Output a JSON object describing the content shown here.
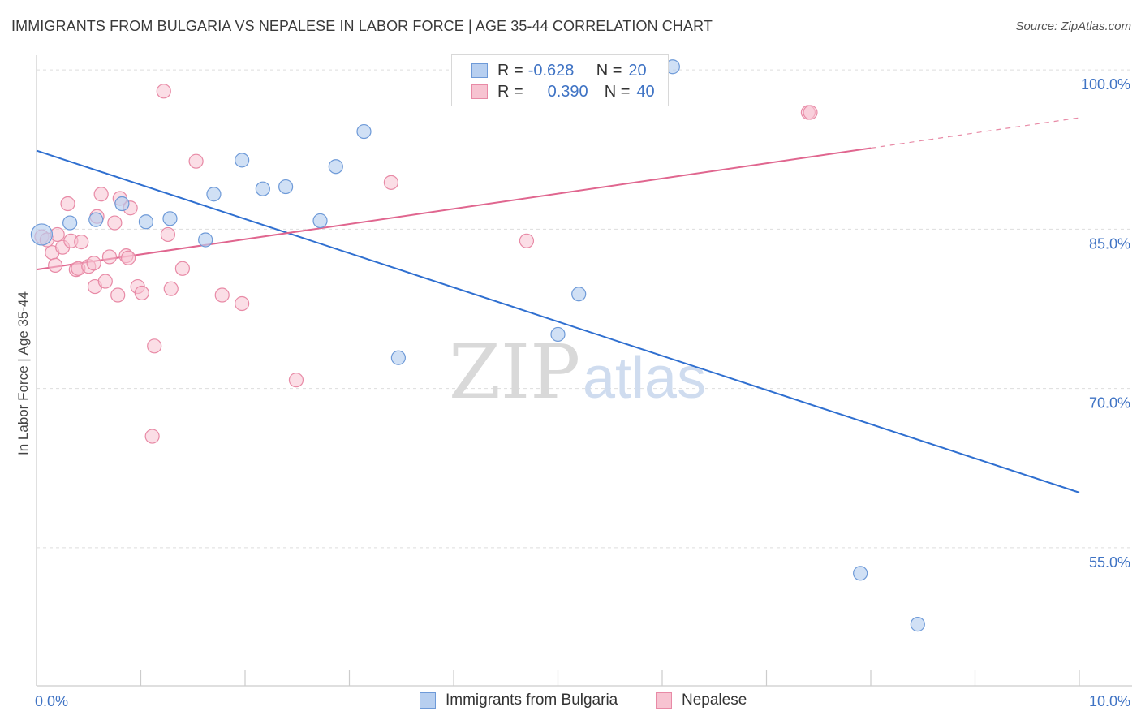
{
  "chart_data": {
    "type": "scatter",
    "title": "IMMIGRANTS FROM BULGARIA VS NEPALESE IN LABOR FORCE | AGE 35-44 CORRELATION CHART",
    "source": "Source: ZipAtlas.com",
    "xlabel": "",
    "ylabel": "In Labor Force | Age 35-44",
    "xlim": [
      0,
      10
    ],
    "ylim": [
      42,
      102
    ],
    "x_tick_labels": [
      "0.0%",
      "10.0%"
    ],
    "y_ticks": [
      {
        "value": 100,
        "label": "100.0%"
      },
      {
        "value": 85,
        "label": "85.0%"
      },
      {
        "value": 70,
        "label": "70.0%"
      },
      {
        "value": 55,
        "label": "55.0%"
      }
    ],
    "watermark": {
      "zip": "ZIP",
      "atlas": "atlas"
    },
    "legend_stats": [
      {
        "r_label": "R =",
        "r_value": "-0.628",
        "n_label": "N =",
        "n_value": "20"
      },
      {
        "r_label": "R =",
        "r_value": "0.390",
        "n_label": "N =",
        "n_value": "40"
      }
    ],
    "series": [
      {
        "name": "Immigrants from Bulgaria",
        "color": "#6e9ad8",
        "fill": "#b7cff0",
        "points": [
          [
            0.05,
            84.5
          ],
          [
            0.32,
            85.6
          ],
          [
            0.57,
            85.9
          ],
          [
            0.82,
            87.4
          ],
          [
            1.05,
            85.7
          ],
          [
            1.28,
            86.0
          ],
          [
            1.62,
            84.0
          ],
          [
            1.7,
            88.3
          ],
          [
            1.97,
            91.5
          ],
          [
            2.17,
            88.8
          ],
          [
            2.39,
            89.0
          ],
          [
            2.72,
            85.8
          ],
          [
            2.87,
            90.9
          ],
          [
            3.14,
            94.2
          ],
          [
            3.47,
            72.9
          ],
          [
            5.0,
            75.1
          ],
          [
            5.2,
            78.9
          ],
          [
            6.1,
            100.3
          ],
          [
            7.9,
            52.6
          ],
          [
            8.45,
            47.8
          ]
        ],
        "trend": {
          "x0": 0,
          "y0": 92.4,
          "x1": 10,
          "y1": 60.2
        }
      },
      {
        "name": "Nepalese",
        "color": "#e88aa6",
        "fill": "#f7c3d1",
        "points": [
          [
            0.05,
            84.3
          ],
          [
            0.1,
            84.0
          ],
          [
            0.15,
            82.8
          ],
          [
            0.2,
            84.5
          ],
          [
            0.18,
            81.6
          ],
          [
            0.25,
            83.3
          ],
          [
            0.3,
            87.4
          ],
          [
            0.33,
            83.9
          ],
          [
            0.38,
            81.2
          ],
          [
            0.4,
            81.3
          ],
          [
            0.43,
            83.8
          ],
          [
            0.5,
            81.5
          ],
          [
            0.55,
            81.8
          ],
          [
            0.56,
            79.6
          ],
          [
            0.58,
            86.2
          ],
          [
            0.62,
            88.3
          ],
          [
            0.66,
            80.1
          ],
          [
            0.7,
            82.4
          ],
          [
            0.75,
            85.6
          ],
          [
            0.78,
            78.8
          ],
          [
            0.8,
            87.9
          ],
          [
            0.86,
            82.5
          ],
          [
            0.88,
            82.3
          ],
          [
            0.97,
            79.6
          ],
          [
            1.01,
            79.0
          ],
          [
            1.11,
            65.5
          ],
          [
            1.13,
            74.0
          ],
          [
            1.22,
            98.0
          ],
          [
            1.26,
            84.5
          ],
          [
            1.29,
            79.4
          ],
          [
            1.4,
            81.3
          ],
          [
            1.53,
            91.4
          ],
          [
            1.78,
            78.8
          ],
          [
            1.97,
            78.0
          ],
          [
            2.49,
            70.8
          ],
          [
            3.4,
            89.4
          ],
          [
            4.7,
            83.9
          ],
          [
            7.4,
            96.0
          ],
          [
            7.42,
            96.0
          ],
          [
            0.9,
            87.0
          ]
        ],
        "trend": {
          "x0": 0,
          "y0": 81.2,
          "x1": 10,
          "y1": 95.5,
          "solid_until_x": 8.0
        }
      }
    ]
  }
}
